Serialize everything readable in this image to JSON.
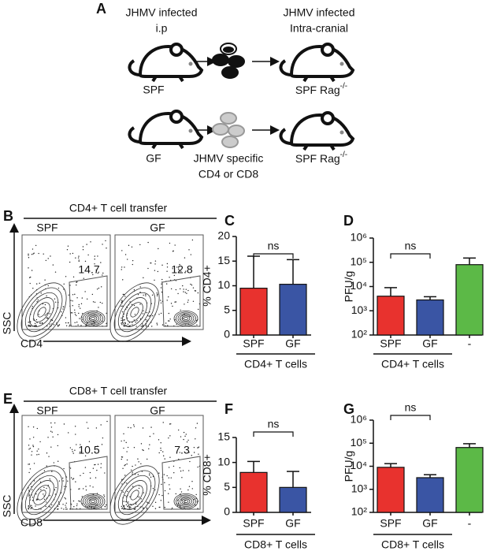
{
  "panel_a": {
    "label": "A",
    "top_left": [
      "JHMV infected",
      "i.p"
    ],
    "top_left_group": "SPF",
    "top_right": [
      "JHMV infected",
      "Intra-cranial"
    ],
    "top_right_group": {
      "text": "SPF Rag",
      "sup": "-/-"
    },
    "bottom_left_group": "GF",
    "bottom_cells": [
      "JHMV specific",
      "CD4 or CD8"
    ],
    "bottom_right_group": {
      "text": "SPF Rag",
      "sup": "-/-"
    }
  },
  "flow": [
    {
      "label": "B",
      "title": "CD4+ T cell transfer",
      "groups": [
        "SPF",
        "GF"
      ],
      "gates": [
        "14.7",
        "12.8"
      ],
      "y_axis": "SSC",
      "x_axis": "CD4"
    },
    {
      "label": "E",
      "title": "CD8+ T cell transfer",
      "groups": [
        "SPF",
        "GF"
      ],
      "gates": [
        "10.5",
        "7.3"
      ],
      "y_axis": "SSC",
      "x_axis": "CD8"
    }
  ],
  "chart_data": [
    {
      "type": "bar",
      "label": "C",
      "ylabel": "% CD4+",
      "xlabel": "CD4+ T cells",
      "categories": [
        "SPF",
        "GF"
      ],
      "values": [
        9.5,
        10.3
      ],
      "errors": [
        6.5,
        5.0
      ],
      "colors": [
        "#e8322e",
        "#3a55a4"
      ],
      "ylim": [
        0,
        20
      ],
      "yticks": [
        0,
        5,
        10,
        15,
        20
      ],
      "annotation": "ns"
    },
    {
      "type": "bar",
      "label": "D",
      "ylabel": "PFU/g",
      "xlabel": "CD4+ T cells",
      "categories": [
        "SPF",
        "GF",
        "-"
      ],
      "values": [
        4000,
        2800,
        80000
      ],
      "errors": [
        5000,
        1000,
        70000
      ],
      "colors": [
        "#e8322e",
        "#3a55a4",
        "#5cb947"
      ],
      "log_scale": true,
      "ylim": [
        100,
        1000000
      ],
      "yticks": [
        {
          "value": 100,
          "label": "10²"
        },
        {
          "value": 1000,
          "label": "10³"
        },
        {
          "value": 10000,
          "label": "10⁴"
        },
        {
          "value": 100000,
          "label": "10⁵"
        },
        {
          "value": 1000000,
          "label": "10⁶"
        }
      ],
      "annotation": "ns"
    },
    {
      "type": "bar",
      "label": "F",
      "ylabel": "% CD8+",
      "xlabel": "CD8+ T cells",
      "categories": [
        "SPF",
        "GF"
      ],
      "values": [
        8,
        5
      ],
      "errors": [
        2.2,
        3.2
      ],
      "colors": [
        "#e8322e",
        "#3a55a4"
      ],
      "ylim": [
        0,
        15
      ],
      "yticks": [
        0,
        5,
        10,
        15
      ],
      "annotation": "ns"
    },
    {
      "type": "bar",
      "label": "G",
      "ylabel": "PFU/g",
      "xlabel": "CD8+ T cells",
      "categories": [
        "SPF",
        "GF",
        "-"
      ],
      "values": [
        9000,
        3200,
        65000
      ],
      "errors": [
        4000,
        1100,
        30000
      ],
      "colors": [
        "#e8322e",
        "#3a55a4",
        "#5cb947"
      ],
      "log_scale": true,
      "ylim": [
        100,
        1000000
      ],
      "yticks": [
        {
          "value": 100,
          "label": "10²"
        },
        {
          "value": 1000,
          "label": "10³"
        },
        {
          "value": 10000,
          "label": "10⁴"
        },
        {
          "value": 100000,
          "label": "10⁵"
        },
        {
          "value": 1000000,
          "label": "10⁶"
        }
      ],
      "annotation": "ns"
    }
  ]
}
